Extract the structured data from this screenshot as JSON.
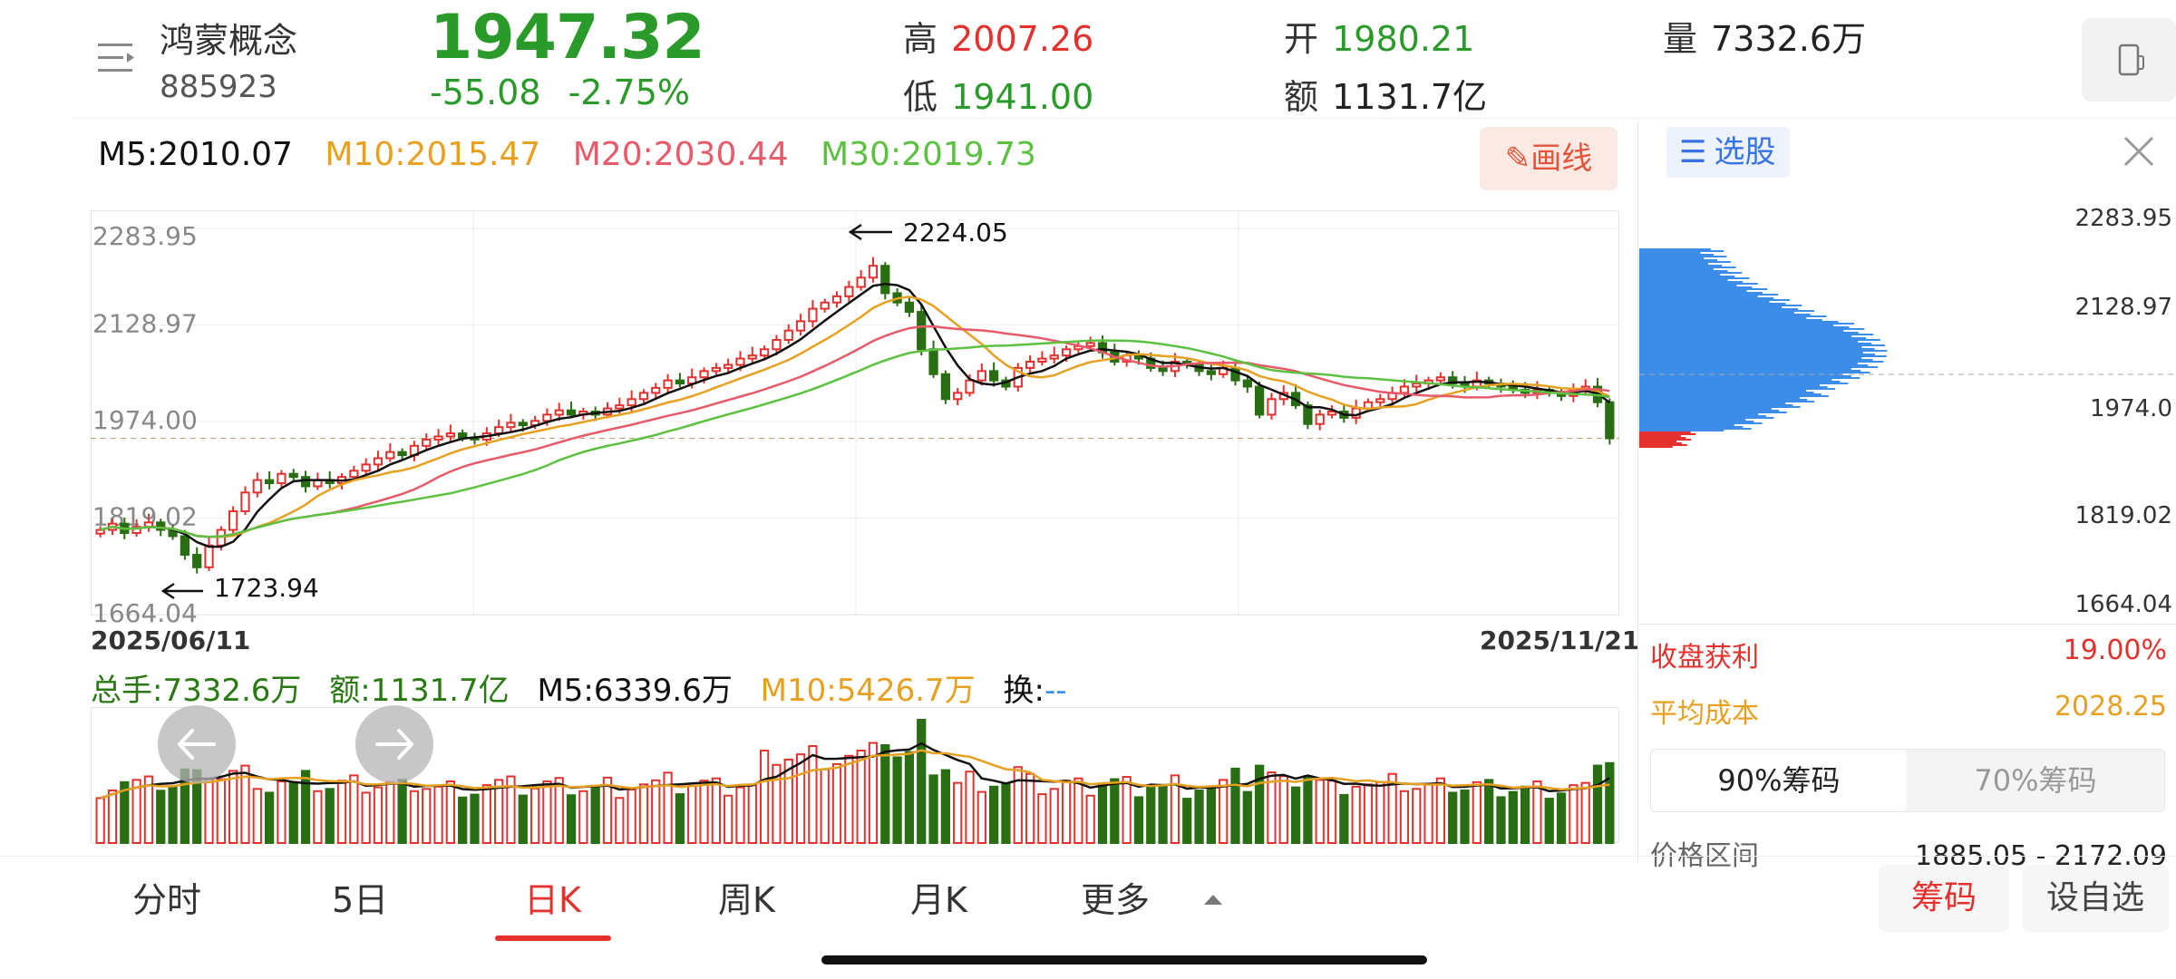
{
  "header": {
    "stock_name": "鸿蒙概念",
    "stock_code": "885923",
    "price": "1947.32",
    "change": "-55.08",
    "change_pct": "-2.75%",
    "high_label": "高",
    "high": "2007.26",
    "low_label": "低",
    "low": "1941.00",
    "open_label": "开",
    "open": "1980.21",
    "amount_label": "额",
    "amount": "1131.7亿",
    "volume_label": "量",
    "volume": "7332.6万"
  },
  "ma": {
    "m5": "M5:2010.07",
    "m10": "M10:2015.47",
    "m20": "M20:2030.44",
    "m30": "M30:2019.73"
  },
  "draw_button": "画线",
  "chart": {
    "y_ticks": [
      "2283.95",
      "2128.97",
      "1974.00",
      "1819.02",
      "1664.04"
    ],
    "max_annotation": "2224.05",
    "min_annotation": "1723.94",
    "start_date": "2025/06/11",
    "end_date": "2025/11/21"
  },
  "volume": {
    "total": "总手:7332.6万",
    "amount": "额:1131.7亿",
    "m5": "M5:6339.6万",
    "m10": "M10:5426.7万",
    "turnover_label": "换:",
    "turnover": "--"
  },
  "right_panel": {
    "select_label": "选股",
    "prices": [
      "2283.95",
      "2128.97",
      "1974.0",
      "1819.02",
      "1664.04"
    ],
    "profit_label": "收盘获利",
    "profit": "19.00%",
    "avg_cost_label": "平均成本",
    "avg_cost": "2028.25",
    "seg_90": "90%筹码",
    "seg_70": "70%筹码",
    "range_label": "价格区间",
    "range": "1885.05 - 2172.09"
  },
  "tabs": [
    "分时",
    "5日",
    "日K",
    "周K",
    "月K",
    "更多"
  ],
  "buttons": {
    "chouma": "筹码",
    "zixuan": "设自选"
  },
  "colors": {
    "up": "#e5312d",
    "down": "#2a6e14",
    "ma5": "#111111",
    "ma10": "#e8a020",
    "ma20": "#e85a6a",
    "ma30": "#5cc040",
    "chip_blue": "#3b8de8",
    "chip_red": "#e5312d"
  },
  "chart_data": {
    "type": "candlestick",
    "x_range": [
      "2025/06/11",
      "2025/11/21"
    ],
    "ylim": [
      1664.04,
      2283.95
    ],
    "y_ticks": [
      2283.95,
      2128.97,
      1974.0,
      1819.02,
      1664.04
    ],
    "close_series": [
      1800,
      1810,
      1795,
      1805,
      1812,
      1800,
      1790,
      1760,
      1740,
      1775,
      1800,
      1830,
      1860,
      1880,
      1875,
      1890,
      1885,
      1870,
      1880,
      1875,
      1885,
      1895,
      1905,
      1915,
      1925,
      1920,
      1935,
      1945,
      1950,
      1955,
      1948,
      1945,
      1955,
      1965,
      1972,
      1968,
      1975,
      1985,
      1992,
      1985,
      1990,
      1985,
      1995,
      2000,
      2010,
      2020,
      2028,
      2040,
      2035,
      2045,
      2055,
      2060,
      2065,
      2075,
      2080,
      2090,
      2105,
      2120,
      2135,
      2155,
      2165,
      2175,
      2190,
      2205,
      2224,
      2180,
      2165,
      2150,
      2090,
      2050,
      2010,
      2020,
      2040,
      2055,
      2040,
      2030,
      2060,
      2070,
      2075,
      2080,
      2090,
      2095,
      2100,
      2085,
      2070,
      2080,
      2075,
      2060,
      2055,
      2070,
      2065,
      2055,
      2050,
      2060,
      2040,
      2030,
      1985,
      2010,
      2020,
      2000,
      1970,
      1985,
      1990,
      1980,
      1995,
      2005,
      2010,
      2020,
      2030,
      2035,
      2040,
      2045,
      2035,
      2030,
      2040,
      2035,
      2030,
      2025,
      2020,
      2025,
      2020,
      2015,
      2025,
      2030,
      2005,
      1947
    ],
    "annotations": [
      {
        "label": "2224.05",
        "type": "max"
      },
      {
        "label": "1723.94",
        "type": "min"
      }
    ]
  }
}
